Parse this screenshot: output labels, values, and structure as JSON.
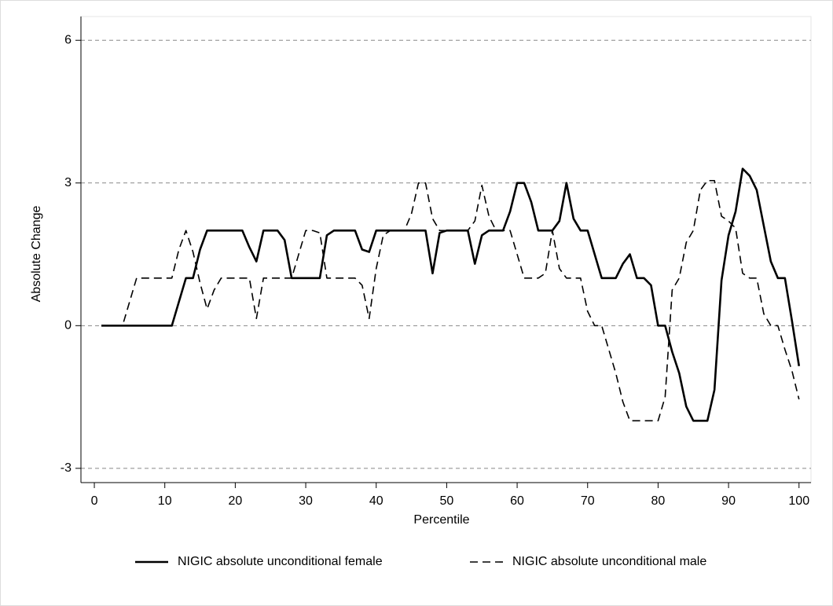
{
  "chart_data": {
    "type": "line",
    "x_label": "Percentile",
    "y_label": "Absolute Change",
    "x": [
      1,
      2,
      3,
      4,
      5,
      6,
      7,
      8,
      9,
      10,
      11,
      12,
      13,
      14,
      15,
      16,
      17,
      18,
      19,
      20,
      21,
      22,
      23,
      24,
      25,
      26,
      27,
      28,
      29,
      30,
      31,
      32,
      33,
      34,
      35,
      36,
      37,
      38,
      39,
      40,
      41,
      42,
      43,
      44,
      45,
      46,
      47,
      48,
      49,
      50,
      51,
      52,
      53,
      54,
      55,
      56,
      57,
      58,
      59,
      60,
      61,
      62,
      63,
      64,
      65,
      66,
      67,
      68,
      69,
      70,
      71,
      72,
      73,
      74,
      75,
      76,
      77,
      78,
      79,
      80,
      81,
      82,
      83,
      84,
      85,
      86,
      87,
      88,
      89,
      90,
      91,
      92,
      93,
      94,
      95,
      96,
      97,
      98,
      99,
      100
    ],
    "series": [
      {
        "name": "NIGIC absolute unconditional female",
        "color": "#000000",
        "dash": "solid",
        "values": [
          0,
          0,
          0,
          0,
          0,
          0,
          0,
          0,
          0,
          0,
          0,
          0.5,
          1,
          1,
          1.6,
          2,
          2,
          2,
          2,
          2,
          2,
          1.65,
          1.35,
          2,
          2,
          2,
          1.8,
          1,
          1,
          1,
          1,
          1,
          1.9,
          2,
          2,
          2,
          2,
          1.6,
          1.55,
          2,
          2,
          2,
          2,
          2,
          2,
          2,
          2,
          1.1,
          1.95,
          2,
          2,
          2,
          2,
          1.3,
          1.9,
          2,
          2,
          2,
          2.4,
          3,
          3,
          2.6,
          2,
          2,
          2,
          2.2,
          3,
          2.25,
          2,
          2,
          1.5,
          1,
          1,
          1,
          1.3,
          1.5,
          1,
          1,
          0.85,
          0,
          0,
          -0.55,
          -1,
          -1.7,
          -2,
          -2,
          -2,
          -1.35,
          0.95,
          1.9,
          2.4,
          3.3,
          3.15,
          2.85,
          2.1,
          1.35,
          1,
          1,
          0.1,
          -0.85
        ]
      },
      {
        "name": "NIGIC absolute unconditional male",
        "color": "#000000",
        "dash": "dashed",
        "values": [
          0,
          0,
          0,
          0,
          0.5,
          1,
          1,
          1,
          1,
          1,
          1,
          1.6,
          2,
          1.55,
          0.9,
          0.35,
          0.75,
          1,
          1,
          1,
          1,
          1,
          0.15,
          1,
          1,
          1,
          1,
          1,
          1.5,
          2,
          2,
          1.95,
          1,
          1,
          1,
          1,
          1,
          0.85,
          0.15,
          1.2,
          1.9,
          2,
          2,
          2,
          2.35,
          3,
          3,
          2.25,
          2,
          2,
          2,
          2,
          2,
          2.2,
          2.95,
          2.3,
          2,
          2,
          2,
          1.5,
          1,
          1,
          1,
          1.1,
          2,
          1.2,
          1,
          1,
          1,
          0.3,
          0,
          0,
          -0.5,
          -1,
          -1.6,
          -2,
          -2,
          -2,
          -2,
          -2,
          -1.5,
          0.75,
          1,
          1.75,
          2,
          2.85,
          3.05,
          3.05,
          2.3,
          2.2,
          2.05,
          1.1,
          1,
          1,
          0.25,
          0,
          0,
          -0.5,
          -0.95,
          -1.55
        ]
      }
    ],
    "xlim": [
      -1.9,
      101.7
    ],
    "xticks": [
      0,
      10,
      20,
      30,
      40,
      50,
      60,
      70,
      80,
      90,
      100
    ],
    "ylim": [
      -3.3,
      6.5
    ],
    "yticks": [
      -3,
      0,
      3,
      6
    ],
    "grid": true,
    "legend": "bottom"
  }
}
